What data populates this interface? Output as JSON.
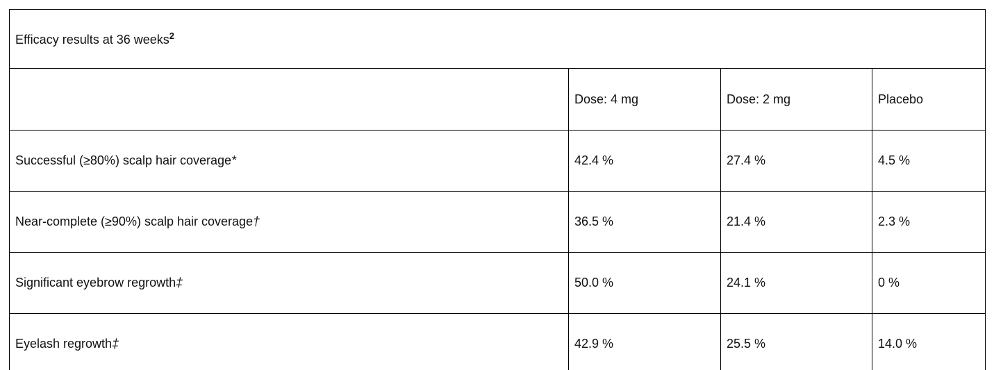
{
  "table": {
    "title": {
      "text": "Efficacy results at 36 weeks",
      "superscript": "2"
    },
    "columns": [
      {
        "label": ""
      },
      {
        "label": "Dose: 4 mg"
      },
      {
        "label": "Dose: 2 mg"
      },
      {
        "label": "Placebo"
      }
    ],
    "rows": [
      {
        "label": "Successful (≥80%) scalp hair coverage",
        "marker": "*",
        "values": [
          "42.4 %",
          "27.4 %",
          "4.5 %"
        ]
      },
      {
        "label": "Near-complete (≥90%) scalp hair coverage",
        "marker": "†",
        "values": [
          "36.5 %",
          "21.4 %",
          "2.3 %"
        ]
      },
      {
        "label": "Significant eyebrow regrowth",
        "marker": "‡",
        "values": [
          "50.0 %",
          "24.1 %",
          "0 %"
        ]
      },
      {
        "label": "Eyelash regrowth",
        "marker": "‡",
        "values": [
          "42.9 %",
          "25.5 %",
          "14.0 %"
        ]
      }
    ],
    "colors": {
      "border": "#000000",
      "text": "#111111",
      "background": "#ffffff"
    }
  }
}
